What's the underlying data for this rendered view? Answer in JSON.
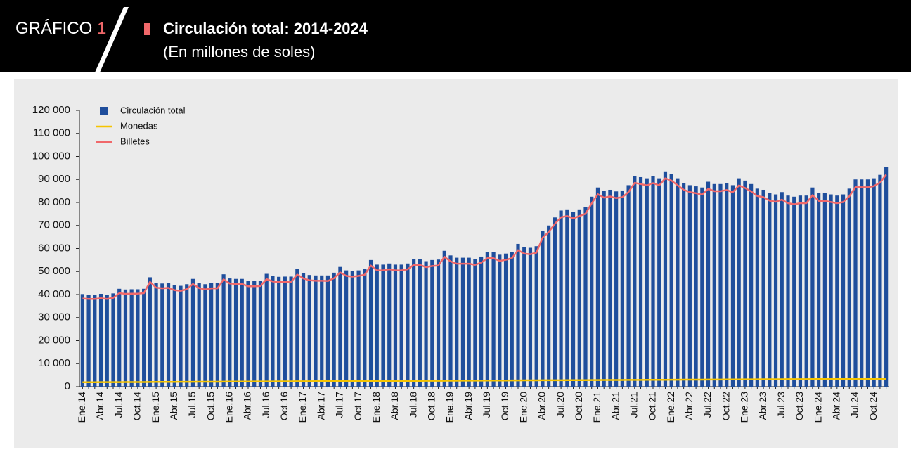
{
  "chart_data": {
    "type": "bar",
    "figure_label": "GRÁFICO",
    "figure_number": "1",
    "title": "Circulación total: 2014-2024",
    "subtitle": "(En millones de soles)",
    "categories": [
      "Ene.14",
      null,
      null,
      "Abr.14",
      null,
      null,
      "Jul.14",
      null,
      null,
      "Oct.14",
      null,
      null,
      "Ene.15",
      null,
      null,
      "Abr.15",
      null,
      null,
      "Jul.15",
      null,
      null,
      "Oct.15",
      null,
      null,
      "Ene.16",
      null,
      null,
      "Abr.16",
      null,
      null,
      "Jul.16",
      null,
      null,
      "Oct.16",
      null,
      null,
      "Ene.17",
      null,
      null,
      "Abr.17",
      null,
      null,
      "Jul.17",
      null,
      null,
      "Oct.17",
      null,
      null,
      "Ene.18",
      null,
      null,
      "Abr.18",
      null,
      null,
      "Jul.18",
      null,
      null,
      "Oct.18",
      null,
      null,
      "Ene.19",
      null,
      null,
      "Abr.19",
      null,
      null,
      "Jul.19",
      null,
      null,
      "Oct.19",
      null,
      null,
      "Ene.20",
      null,
      null,
      "Abr.20",
      null,
      null,
      "Jul.20",
      null,
      null,
      "Oct.20",
      null,
      null,
      "Ene.21",
      null,
      null,
      "Abr.21",
      null,
      null,
      "Jul.21",
      null,
      null,
      "Oct.21",
      null,
      null,
      "Ene.22",
      null,
      null,
      "Abr.22",
      null,
      null,
      "Jul.22",
      null,
      null,
      "Oct.22",
      null,
      null,
      "Ene.23",
      null,
      null,
      "Abr.23",
      null,
      null,
      "Jul.23",
      null,
      null,
      "Oct.23",
      null,
      null,
      "Ene.24",
      null,
      null,
      "Abr.24",
      null,
      null,
      "Jul.24",
      null,
      null,
      "Oct.24",
      null,
      null
    ],
    "series": [
      {
        "name": "Circulación total",
        "type": "bar",
        "color": "#1f4e9c",
        "values": [
          40200,
          40000,
          40000,
          40300,
          40000,
          40500,
          42500,
          42200,
          42300,
          42300,
          42500,
          47500,
          45000,
          44800,
          45000,
          44000,
          43800,
          44500,
          46800,
          45000,
          44500,
          45000,
          45000,
          48800,
          47000,
          46800,
          46800,
          45800,
          45800,
          46000,
          49000,
          48000,
          47700,
          47800,
          47800,
          51000,
          49300,
          48500,
          48300,
          48300,
          48300,
          49500,
          52000,
          50500,
          50200,
          50500,
          51000,
          55000,
          53000,
          53000,
          53500,
          53000,
          53000,
          53500,
          55500,
          55500,
          54500,
          55000,
          55200,
          59000,
          57000,
          56000,
          56000,
          56000,
          55500,
          56500,
          58500,
          58500,
          57300,
          57800,
          58500,
          62000,
          60500,
          60300,
          61000,
          67500,
          70000,
          73500,
          76500,
          77000,
          76000,
          77000,
          78000,
          82500,
          86500,
          85000,
          85500,
          84800,
          85200,
          87500,
          91500,
          91000,
          90500,
          91500,
          90500,
          93500,
          92500,
          90500,
          88500,
          87500,
          87000,
          86500,
          89000,
          88000,
          88000,
          88500,
          87500,
          90500,
          89500,
          88000,
          86000,
          85500,
          84000,
          83500,
          84500,
          83000,
          82500,
          83000,
          83000,
          86500,
          84000,
          84000,
          83500,
          83000,
          83500,
          86000,
          90000,
          90000,
          90000,
          90500,
          92000,
          95500
        ]
      },
      {
        "name": "Monedas",
        "type": "line",
        "color": "#f5c400",
        "values": [
          1900,
          1910,
          1920,
          1930,
          1940,
          1950,
          1960,
          1970,
          1980,
          1990,
          2000,
          2010,
          2050,
          2060,
          2070,
          2080,
          2090,
          2100,
          2110,
          2120,
          2130,
          2140,
          2150,
          2160,
          2200,
          2210,
          2220,
          2230,
          2240,
          2250,
          2260,
          2270,
          2280,
          2290,
          2300,
          2310,
          2330,
          2340,
          2350,
          2360,
          2370,
          2380,
          2390,
          2400,
          2410,
          2420,
          2430,
          2440,
          2460,
          2470,
          2480,
          2490,
          2500,
          2510,
          2520,
          2530,
          2540,
          2550,
          2560,
          2570,
          2600,
          2610,
          2620,
          2630,
          2640,
          2650,
          2660,
          2670,
          2680,
          2690,
          2700,
          2710,
          2740,
          2750,
          2760,
          2770,
          2780,
          2790,
          2800,
          2810,
          2820,
          2830,
          2840,
          2850,
          2880,
          2890,
          2900,
          2910,
          2920,
          2930,
          2940,
          2950,
          2960,
          2970,
          2980,
          2990,
          3020,
          3030,
          3040,
          3050,
          3060,
          3070,
          3080,
          3090,
          3100,
          3110,
          3120,
          3130,
          3160,
          3170,
          3180,
          3190,
          3200,
          3210,
          3220,
          3230,
          3240,
          3250,
          3260,
          3270,
          3300,
          3310,
          3320,
          3330,
          3340,
          3350,
          3360,
          3370,
          3380,
          3390,
          3400,
          3410
        ]
      },
      {
        "name": "Billetes",
        "type": "line",
        "color": "#f0686a",
        "values": [
          38300,
          38100,
          38100,
          38400,
          38100,
          38600,
          40600,
          40300,
          40400,
          40400,
          40600,
          45500,
          43000,
          42700,
          42900,
          41900,
          41600,
          42300,
          44600,
          42800,
          42200,
          42700,
          42700,
          46600,
          44800,
          44600,
          44600,
          43600,
          43600,
          43700,
          46700,
          45700,
          45400,
          45500,
          45500,
          48700,
          47000,
          46200,
          46000,
          46000,
          45900,
          47100,
          49600,
          48100,
          47800,
          48100,
          48600,
          52600,
          50500,
          50500,
          51000,
          50500,
          50500,
          51000,
          52900,
          52900,
          51900,
          52400,
          52600,
          56400,
          54400,
          53400,
          53400,
          53400,
          52900,
          53900,
          55800,
          55800,
          54600,
          55100,
          55800,
          59300,
          57800,
          57500,
          58200,
          64700,
          67200,
          70700,
          73600,
          74100,
          73100,
          74100,
          75100,
          79600,
          83600,
          82100,
          82600,
          81900,
          82300,
          84500,
          88500,
          88000,
          87400,
          88400,
          87400,
          90500,
          89500,
          87500,
          85500,
          84500,
          84000,
          83400,
          85900,
          84900,
          84900,
          85400,
          84400,
          87400,
          86300,
          84800,
          82800,
          82300,
          80800,
          80300,
          81200,
          79700,
          79200,
          79700,
          79700,
          83200,
          80700,
          80700,
          80200,
          79700,
          80200,
          82700,
          86700,
          86600,
          86600,
          87100,
          88600,
          92100
        ]
      }
    ],
    "ylim": [
      0,
      120000
    ],
    "yticks": [
      0,
      {
        "value": 10000,
        "label": "10 000"
      },
      {
        "value": 20000,
        "label": "20 000"
      },
      {
        "value": 30000,
        "label": "30 000"
      },
      {
        "value": 40000,
        "label": "40 000"
      },
      {
        "value": 50000,
        "label": "50 000"
      },
      {
        "value": 60000,
        "label": "60 000"
      },
      {
        "value": 70000,
        "label": "70 000"
      },
      {
        "value": 80000,
        "label": "80 000"
      },
      {
        "value": 90000,
        "label": "90 000"
      },
      {
        "value": 100000,
        "label": "100 000"
      },
      {
        "value": 110000,
        "label": "110 000"
      },
      {
        "value": 120000,
        "label": "120 000"
      }
    ],
    "grid": false
  }
}
